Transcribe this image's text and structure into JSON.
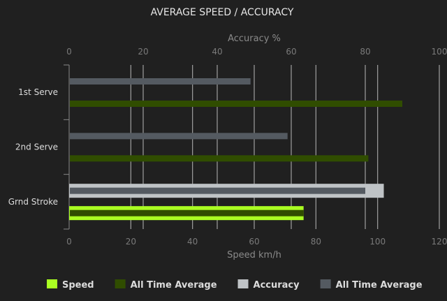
{
  "chart_data": {
    "type": "bar",
    "orientation": "horizontal",
    "title": "AVERAGE SPEED / ACCURACY",
    "top_axis": {
      "label": "Accuracy %",
      "range": [
        0,
        100
      ],
      "ticks": [
        "0",
        "20",
        "40",
        "60",
        "80",
        "100"
      ]
    },
    "bottom_axis": {
      "label": "Speed km/h",
      "range": [
        0,
        120
      ],
      "ticks": [
        "0",
        "20",
        "40",
        "60",
        "80",
        "100",
        "120"
      ]
    },
    "categories": [
      "1st Serve",
      "2nd Serve",
      "Grnd Stroke"
    ],
    "series": [
      {
        "name": "Speed",
        "axis": "speed",
        "color": "#aaff22",
        "values": [
          null,
          null,
          76
        ]
      },
      {
        "name": "All Time Average",
        "axis": "speed",
        "color": "#304d00",
        "values": [
          108,
          97,
          76
        ]
      },
      {
        "name": "Accuracy",
        "axis": "accuracy",
        "color": "#bfc3c6",
        "values": [
          null,
          null,
          85
        ]
      },
      {
        "name": "All Time Average",
        "axis": "accuracy",
        "color": "#545a61",
        "values": [
          49,
          59,
          80
        ]
      }
    ],
    "grid": true,
    "legend_position": "bottom"
  }
}
